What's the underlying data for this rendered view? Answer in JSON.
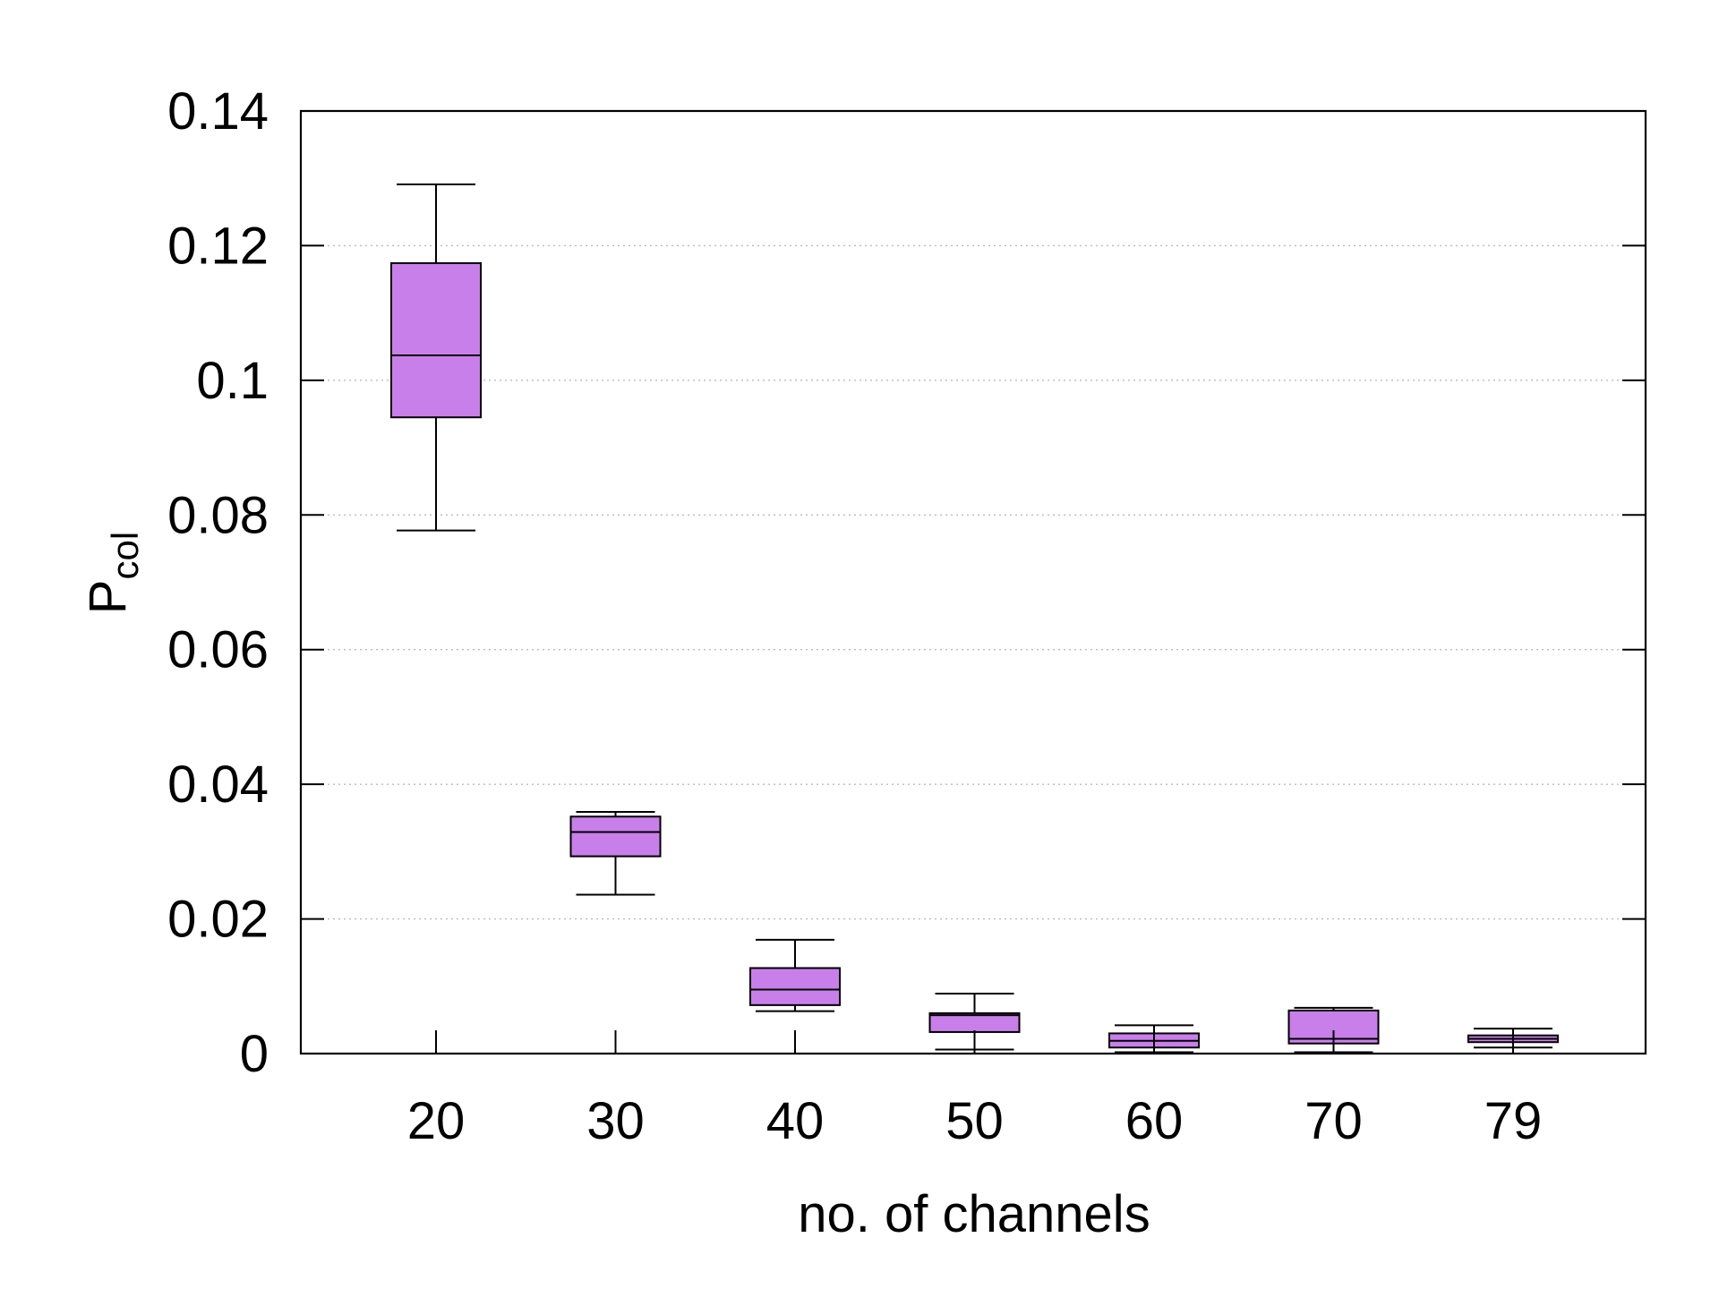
{
  "chart_data": {
    "type": "box",
    "categories": [
      "20",
      "30",
      "40",
      "50",
      "60",
      "70",
      "79"
    ],
    "boxes": [
      {
        "category": "20",
        "whisker_low": 0.0777,
        "q1": 0.0945,
        "median": 0.1037,
        "q3": 0.1174,
        "whisker_high": 0.1291
      },
      {
        "category": "30",
        "whisker_low": 0.0236,
        "q1": 0.0293,
        "median": 0.0329,
        "q3": 0.0352,
        "whisker_high": 0.0359
      },
      {
        "category": "40",
        "whisker_low": 0.0063,
        "q1": 0.0072,
        "median": 0.0095,
        "q3": 0.0127,
        "whisker_high": 0.0169
      },
      {
        "category": "50",
        "whisker_low": 0.0006,
        "q1": 0.0032,
        "median": 0.0057,
        "q3": 0.006,
        "whisker_high": 0.0089
      },
      {
        "category": "60",
        "whisker_low": 0.0002,
        "q1": 0.0009,
        "median": 0.0019,
        "q3": 0.003,
        "whisker_high": 0.0042
      },
      {
        "category": "70",
        "whisker_low": 0.0002,
        "q1": 0.0015,
        "median": 0.0022,
        "q3": 0.0064,
        "whisker_high": 0.0068
      },
      {
        "category": "79",
        "whisker_low": 0.0009,
        "q1": 0.0017,
        "median": 0.0022,
        "q3": 0.0027,
        "whisker_high": 0.0037
      }
    ],
    "xlabel": "no. of channels",
    "ylabel_main": "P",
    "ylabel_sub": "col",
    "ylim": [
      0,
      0.14
    ],
    "y_ticks": [
      0,
      0.02,
      0.04,
      0.06,
      0.08,
      0.1,
      0.12,
      0.14
    ],
    "y_tick_labels": [
      "0",
      "0.02",
      "0.04",
      "0.06",
      "0.08",
      "0.1",
      "0.12",
      "0.14"
    ],
    "grid": "horizontal dotted",
    "box_fill": "#c97fea",
    "line_color": "#000000",
    "grid_color": "#bbbbbb"
  }
}
